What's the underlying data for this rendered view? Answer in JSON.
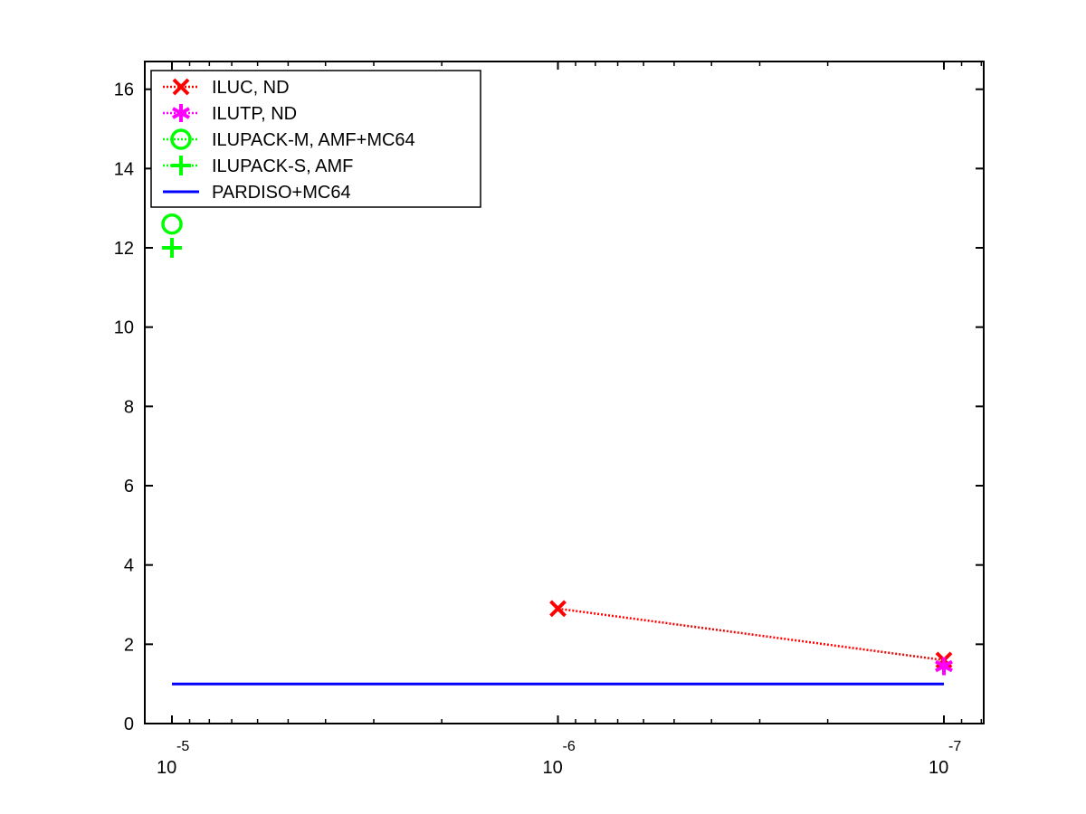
{
  "chart_data": {
    "type": "line",
    "title": "",
    "xlabel": "",
    "ylabel": "",
    "x_axis": {
      "scale": "log",
      "reversed": true,
      "tick_values": [
        1e-05,
        1e-06,
        1e-07
      ],
      "tick_labels": [
        {
          "base": "10",
          "exponent": "-5"
        },
        {
          "base": "10",
          "exponent": "-6"
        },
        {
          "base": "10",
          "exponent": "-7"
        }
      ]
    },
    "ylim": [
      0,
      16.7
    ],
    "y_ticks": [
      0,
      2,
      4,
      6,
      8,
      10,
      12,
      14,
      16
    ],
    "y_tick_labels": [
      "0",
      "2",
      "4",
      "6",
      "8",
      "10",
      "12",
      "14",
      "16"
    ],
    "grid": false,
    "legend_placement": "top-left",
    "series": [
      {
        "name": "ILUC, ND",
        "color": "#ff0000",
        "marker": "x",
        "line": "dotted",
        "points": [
          {
            "x": 1e-06,
            "y": 2.9
          },
          {
            "x": 1e-07,
            "y": 1.6
          }
        ]
      },
      {
        "name": "ILUTP, ND",
        "color": "#ff00ff",
        "marker": "asterisk",
        "line": "dotted",
        "points": [
          {
            "x": 1e-07,
            "y": 1.45
          }
        ]
      },
      {
        "name": "ILUPACK-M, AMF+MC64",
        "color": "#00ff00",
        "marker": "circle",
        "line": "dotted",
        "points": [
          {
            "x": 1e-05,
            "y": 12.6
          }
        ]
      },
      {
        "name": "ILUPACK-S, AMF",
        "color": "#00ff00",
        "marker": "plus",
        "line": "dotted",
        "points": [
          {
            "x": 1e-05,
            "y": 12.0
          }
        ]
      },
      {
        "name": "PARDISO+MC64",
        "color": "#0000ff",
        "marker": "none",
        "line": "solid",
        "points": [
          {
            "x": 1e-05,
            "y": 1.0
          },
          {
            "x": 1e-07,
            "y": 1.0
          }
        ]
      }
    ]
  }
}
